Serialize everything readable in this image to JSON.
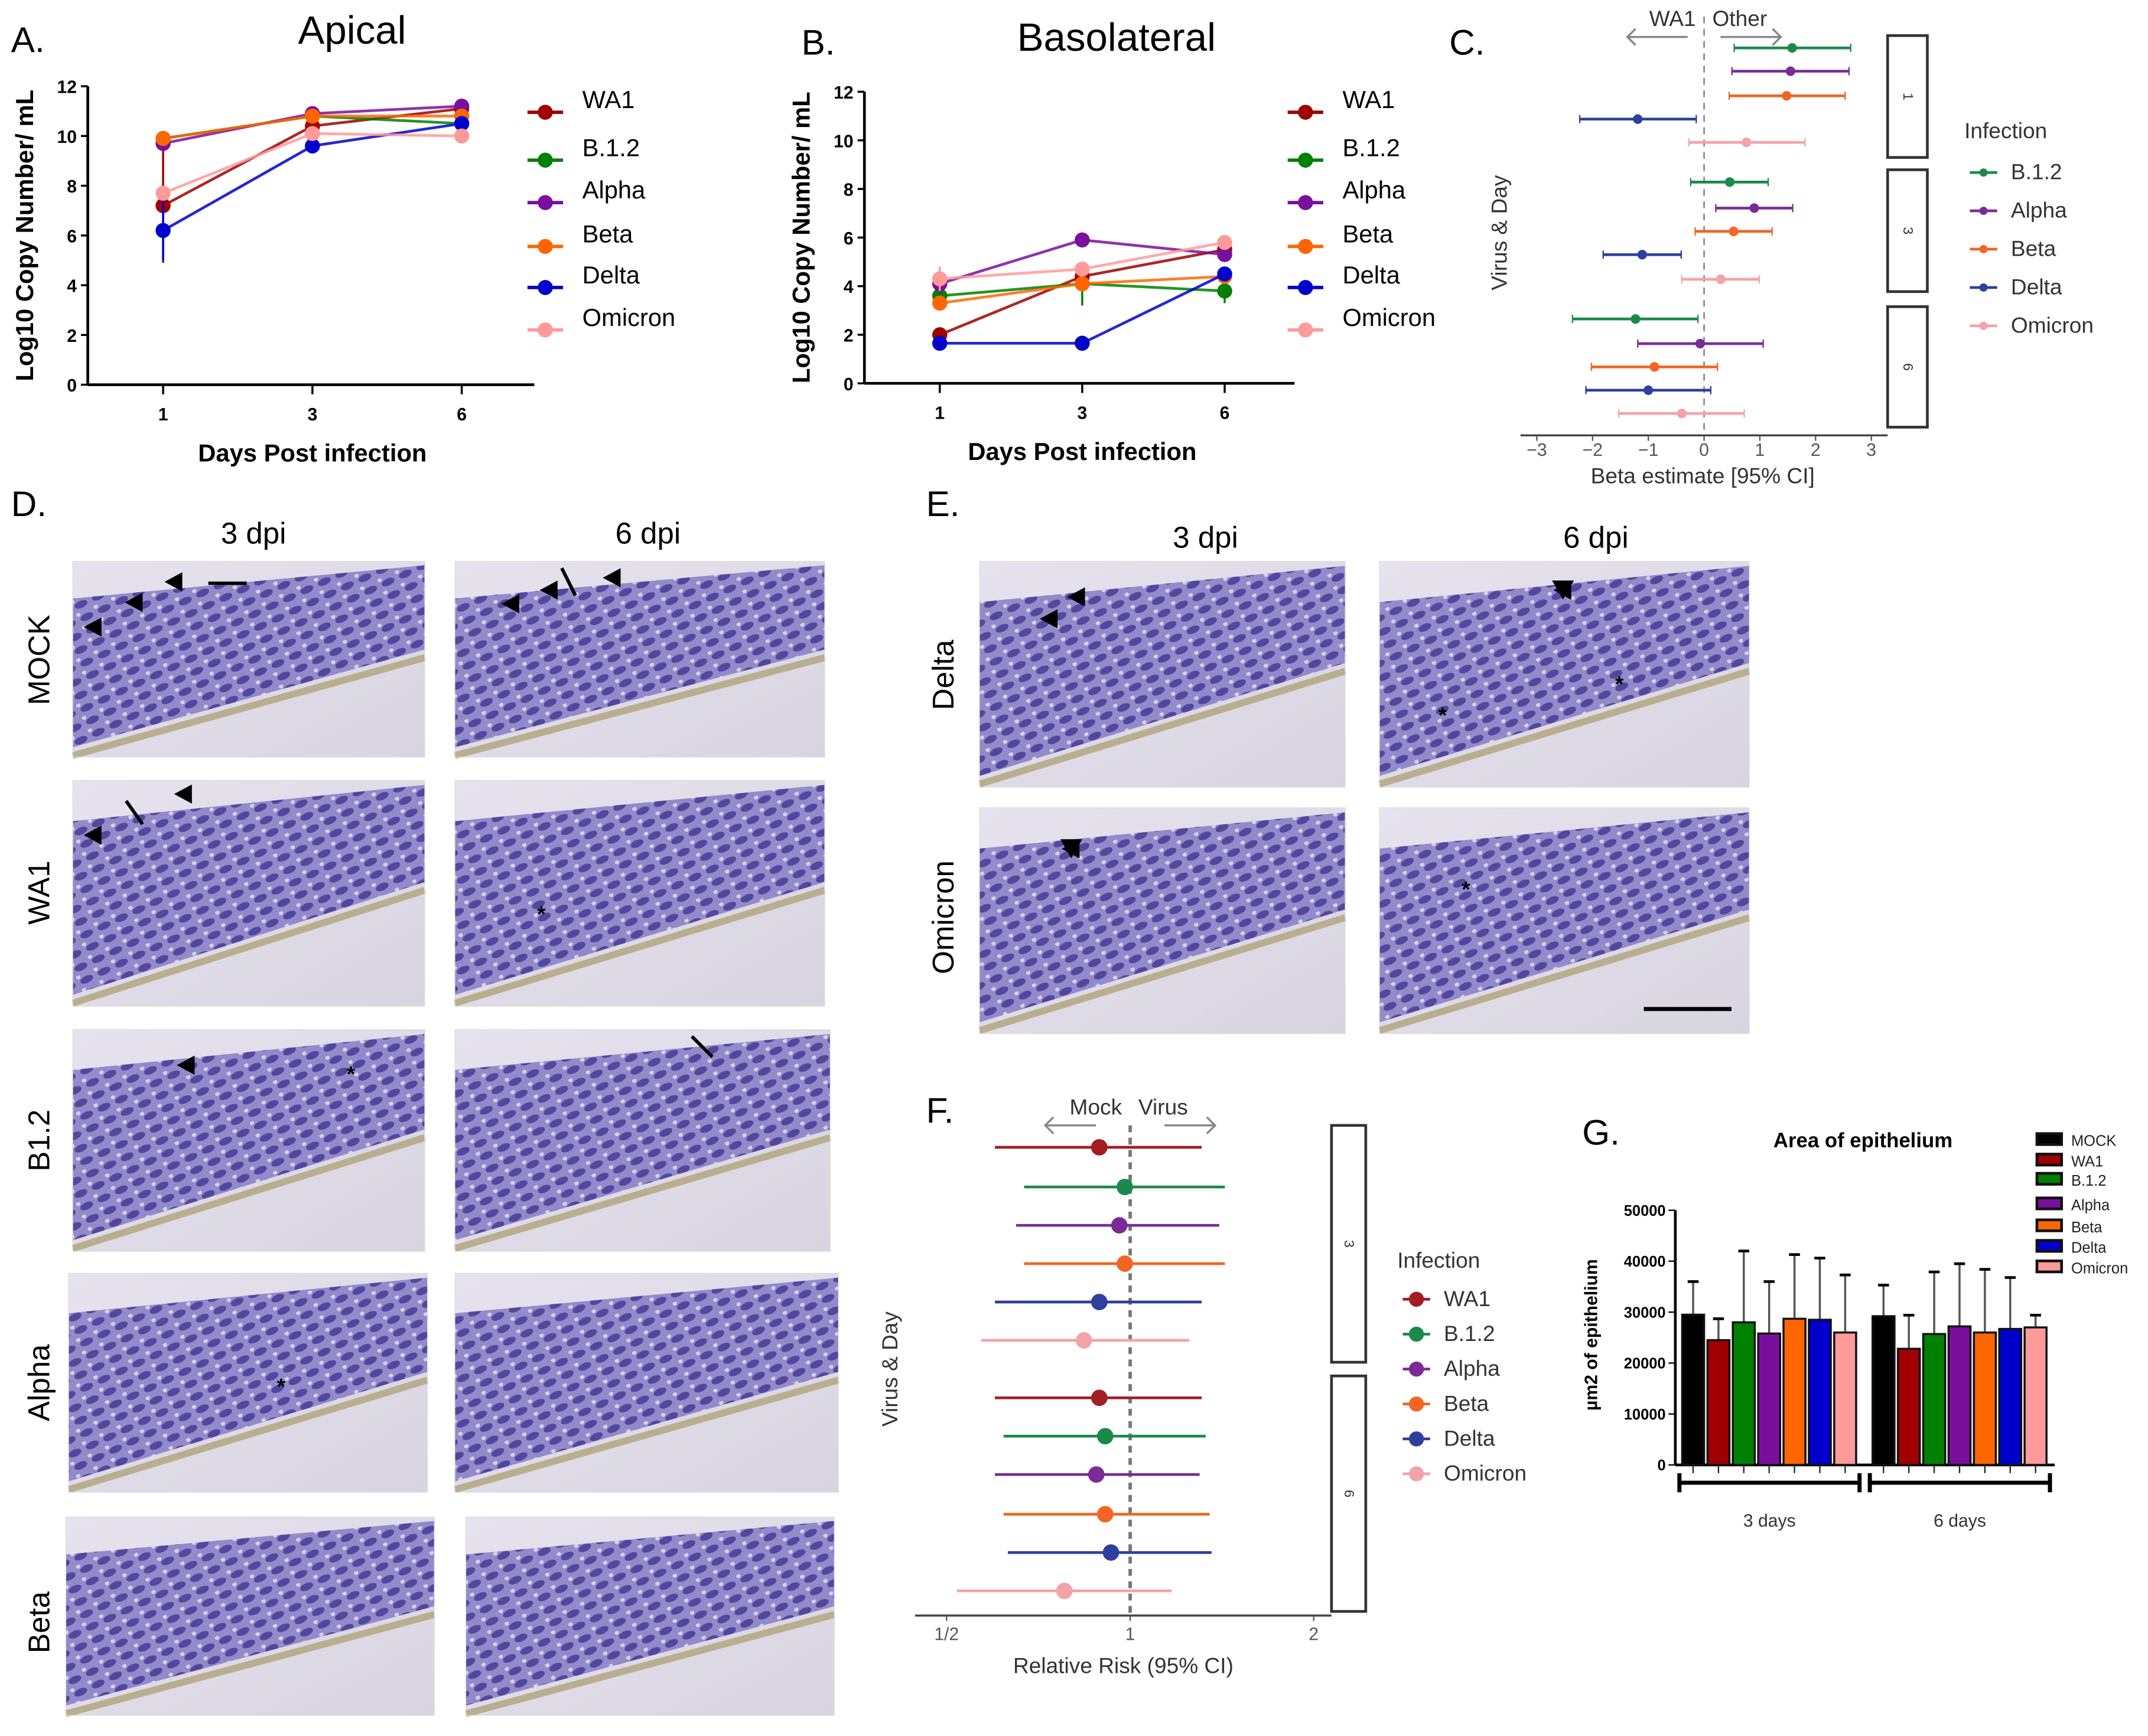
{
  "panels": {
    "A": "A.",
    "B": "B.",
    "C": "C.",
    "D": "D.",
    "E": "E.",
    "F": "F.",
    "G": "G."
  },
  "micrographs": {
    "D": {
      "columns": [
        "3 dpi",
        "6 dpi"
      ],
      "rows": [
        "MOCK",
        "WA1",
        "B1.2",
        "Alpha",
        "Beta"
      ]
    },
    "E": {
      "columns": [
        "3 dpi",
        "6 dpi"
      ],
      "rows": [
        "Delta",
        "Omicron"
      ]
    },
    "asterisk": "*"
  },
  "colors": {
    "WA1": "#a00000",
    "B.1.2": "#008000",
    "Alpha": "#7a0f9e",
    "Beta": "#ff6600",
    "Delta": "#0000cc",
    "Omicron": "#ff9a9a",
    "MOCK": "#000000"
  },
  "gg_colors": {
    "WA1": "#a31d22",
    "B.1.2": "#1a8a4a",
    "Alpha": "#7b2b96",
    "Beta": "#f26522",
    "Delta": "#2e3f9e",
    "Omicron": "#f4a3a8"
  },
  "chart_data": [
    {
      "id": "A",
      "type": "line",
      "title": "Apical",
      "xlabel": "Days Post infection",
      "ylabel": "Log10 Copy Number/ mL",
      "x": [
        1,
        3,
        6
      ],
      "ylim": [
        0,
        12
      ],
      "yticks": [
        0,
        2,
        4,
        6,
        8,
        10,
        12
      ],
      "legend": "right",
      "series": [
        {
          "name": "WA1",
          "values": [
            7.2,
            10.4,
            11.1
          ],
          "err": [
            2.3,
            0.3,
            0.3
          ]
        },
        {
          "name": "B.1.2",
          "values": [
            9.9,
            10.8,
            10.5
          ],
          "err": [
            0.2,
            0.2,
            0.3
          ]
        },
        {
          "name": "Alpha",
          "values": [
            9.7,
            10.9,
            11.2
          ],
          "err": [
            0.2,
            0.2,
            0.2
          ]
        },
        {
          "name": "Beta",
          "values": [
            9.9,
            10.8,
            10.8
          ],
          "err": [
            0.2,
            0.2,
            0.2
          ]
        },
        {
          "name": "Delta",
          "values": [
            6.2,
            9.6,
            10.5
          ],
          "err": [
            1.2,
            0.3,
            0.2
          ]
        },
        {
          "name": "Omicron",
          "values": [
            7.7,
            10.1,
            10.0
          ],
          "err": [
            0.3,
            0.2,
            0.2
          ]
        }
      ]
    },
    {
      "id": "B",
      "type": "line",
      "title": "Basolateral",
      "xlabel": "Days Post infection",
      "ylabel": "Log10 Copy Number/ mL",
      "x": [
        1,
        3,
        6
      ],
      "ylim": [
        0,
        12
      ],
      "yticks": [
        0,
        2,
        4,
        6,
        8,
        10,
        12
      ],
      "legend": "right",
      "series": [
        {
          "name": "WA1",
          "values": [
            2.0,
            4.4,
            5.5
          ],
          "err": [
            0.3,
            0.3,
            0.3
          ]
        },
        {
          "name": "B.1.2",
          "values": [
            3.6,
            4.1,
            3.8
          ],
          "err": [
            0.3,
            0.9,
            0.5
          ]
        },
        {
          "name": "Alpha",
          "values": [
            4.1,
            5.9,
            5.3
          ],
          "err": [
            0.4,
            0.3,
            0.3
          ]
        },
        {
          "name": "Beta",
          "values": [
            3.3,
            4.1,
            4.4
          ],
          "err": [
            0.2,
            0.2,
            0.2
          ]
        },
        {
          "name": "Delta",
          "values": [
            1.65,
            1.65,
            4.5
          ],
          "err": [
            0.05,
            0.05,
            0.3
          ]
        },
        {
          "name": "Omicron",
          "values": [
            4.3,
            4.7,
            5.8
          ],
          "err": [
            0.5,
            0.3,
            0.2
          ]
        }
      ]
    },
    {
      "id": "C",
      "type": "scatter",
      "subtype": "forest",
      "xlabel": "Beta estimate [95% CI]",
      "ylabel": "Virus & Day",
      "xlim": [
        -3.3,
        3.3
      ],
      "xticks": [
        -3,
        -2,
        -1,
        0,
        1,
        2,
        3
      ],
      "arrow_left": "WA1",
      "arrow_right": "Other",
      "legend_title": "Infection",
      "legend": "right",
      "legend_items": [
        "B.1.2",
        "Alpha",
        "Beta",
        "Delta",
        "Omicron"
      ],
      "facets": [
        {
          "day": "1",
          "rows": [
            {
              "name": "B.1.2",
              "est": 1.58,
              "lo": 0.54,
              "hi": 2.63
            },
            {
              "name": "Alpha",
              "est": 1.55,
              "lo": 0.5,
              "hi": 2.6
            },
            {
              "name": "Beta",
              "est": 1.48,
              "lo": 0.45,
              "hi": 2.53
            },
            {
              "name": "Delta",
              "est": -1.19,
              "lo": -2.23,
              "hi": -0.14
            },
            {
              "name": "Omicron",
              "est": 0.76,
              "lo": -0.27,
              "hi": 1.81
            }
          ]
        },
        {
          "day": "3",
          "rows": [
            {
              "name": "B.1.2",
              "est": 0.46,
              "lo": -0.24,
              "hi": 1.15
            },
            {
              "name": "Alpha",
              "est": 0.9,
              "lo": 0.21,
              "hi": 1.59
            },
            {
              "name": "Beta",
              "est": 0.53,
              "lo": -0.16,
              "hi": 1.22
            },
            {
              "name": "Delta",
              "est": -1.11,
              "lo": -1.81,
              "hi": -0.41
            },
            {
              "name": "Omicron",
              "est": 0.3,
              "lo": -0.4,
              "hi": 0.99
            }
          ]
        },
        {
          "day": "6",
          "rows": [
            {
              "name": "B.1.2",
              "est": -1.23,
              "lo": -2.36,
              "hi": -0.11
            },
            {
              "name": "Alpha",
              "est": -0.07,
              "lo": -1.19,
              "hi": 1.06
            },
            {
              "name": "Beta",
              "est": -0.89,
              "lo": -2.02,
              "hi": 0.24
            },
            {
              "name": "Delta",
              "est": -1.0,
              "lo": -2.12,
              "hi": 0.12
            },
            {
              "name": "Omicron",
              "est": -0.4,
              "lo": -1.53,
              "hi": 0.72
            }
          ]
        }
      ]
    },
    {
      "id": "F",
      "type": "scatter",
      "subtype": "forest",
      "xscale": "log2",
      "xlabel": "Relative Risk (95% CI)",
      "ylabel": "Virus & Day",
      "xticks": [
        0.5,
        1,
        2
      ],
      "xticklabels": [
        "1/2",
        "1",
        "2"
      ],
      "arrow_left": "Mock",
      "arrow_right": "Virus",
      "legend_title": "Infection",
      "legend": "right",
      "legend_items": [
        "WA1",
        "B.1.2",
        "Alpha",
        "Beta",
        "Delta",
        "Omicron"
      ],
      "facets": [
        {
          "day": "3",
          "rows": [
            {
              "name": "WA1",
              "est": 0.89,
              "lo": 0.6,
              "hi": 1.31
            },
            {
              "name": "B.1.2",
              "est": 0.98,
              "lo": 0.67,
              "hi": 1.43
            },
            {
              "name": "Alpha",
              "est": 0.96,
              "lo": 0.65,
              "hi": 1.4
            },
            {
              "name": "Beta",
              "est": 0.98,
              "lo": 0.67,
              "hi": 1.43
            },
            {
              "name": "Delta",
              "est": 0.89,
              "lo": 0.6,
              "hi": 1.31
            },
            {
              "name": "Omicron",
              "est": 0.84,
              "lo": 0.57,
              "hi": 1.25
            }
          ]
        },
        {
          "day": "6",
          "rows": [
            {
              "name": "WA1",
              "est": 0.89,
              "lo": 0.6,
              "hi": 1.31
            },
            {
              "name": "B.1.2",
              "est": 0.91,
              "lo": 0.62,
              "hi": 1.33
            },
            {
              "name": "Alpha",
              "est": 0.88,
              "lo": 0.6,
              "hi": 1.3
            },
            {
              "name": "Beta",
              "est": 0.91,
              "lo": 0.62,
              "hi": 1.35
            },
            {
              "name": "Delta",
              "est": 0.93,
              "lo": 0.63,
              "hi": 1.36
            },
            {
              "name": "Omicron",
              "est": 0.78,
              "lo": 0.52,
              "hi": 1.17
            }
          ]
        }
      ]
    },
    {
      "id": "G",
      "type": "bar",
      "title": "Area of epithelium",
      "ylabel": "µm2 of epithelium",
      "xlabel": "",
      "categories": [
        "3 days",
        "6 days"
      ],
      "ylim": [
        0,
        50000
      ],
      "yticks": [
        0,
        10000,
        20000,
        30000,
        40000,
        50000
      ],
      "legend": "top-right",
      "series": [
        {
          "name": "MOCK",
          "values": [
            29500,
            29200
          ],
          "err_top": [
            36000,
            35300
          ]
        },
        {
          "name": "WA1",
          "values": [
            24500,
            22800
          ],
          "err_top": [
            28700,
            29400
          ]
        },
        {
          "name": "B.1.2",
          "values": [
            28000,
            25700
          ],
          "err_top": [
            42000,
            37900
          ]
        },
        {
          "name": "Alpha",
          "values": [
            25800,
            27200
          ],
          "err_top": [
            36000,
            39500
          ]
        },
        {
          "name": "Beta",
          "values": [
            28700,
            26000
          ],
          "err_top": [
            41300,
            38400
          ]
        },
        {
          "name": "Delta",
          "values": [
            28500,
            26700
          ],
          "err_top": [
            40600,
            36800
          ]
        },
        {
          "name": "Omicron",
          "values": [
            26000,
            27000
          ],
          "err_top": [
            37300,
            29400
          ]
        }
      ]
    }
  ]
}
